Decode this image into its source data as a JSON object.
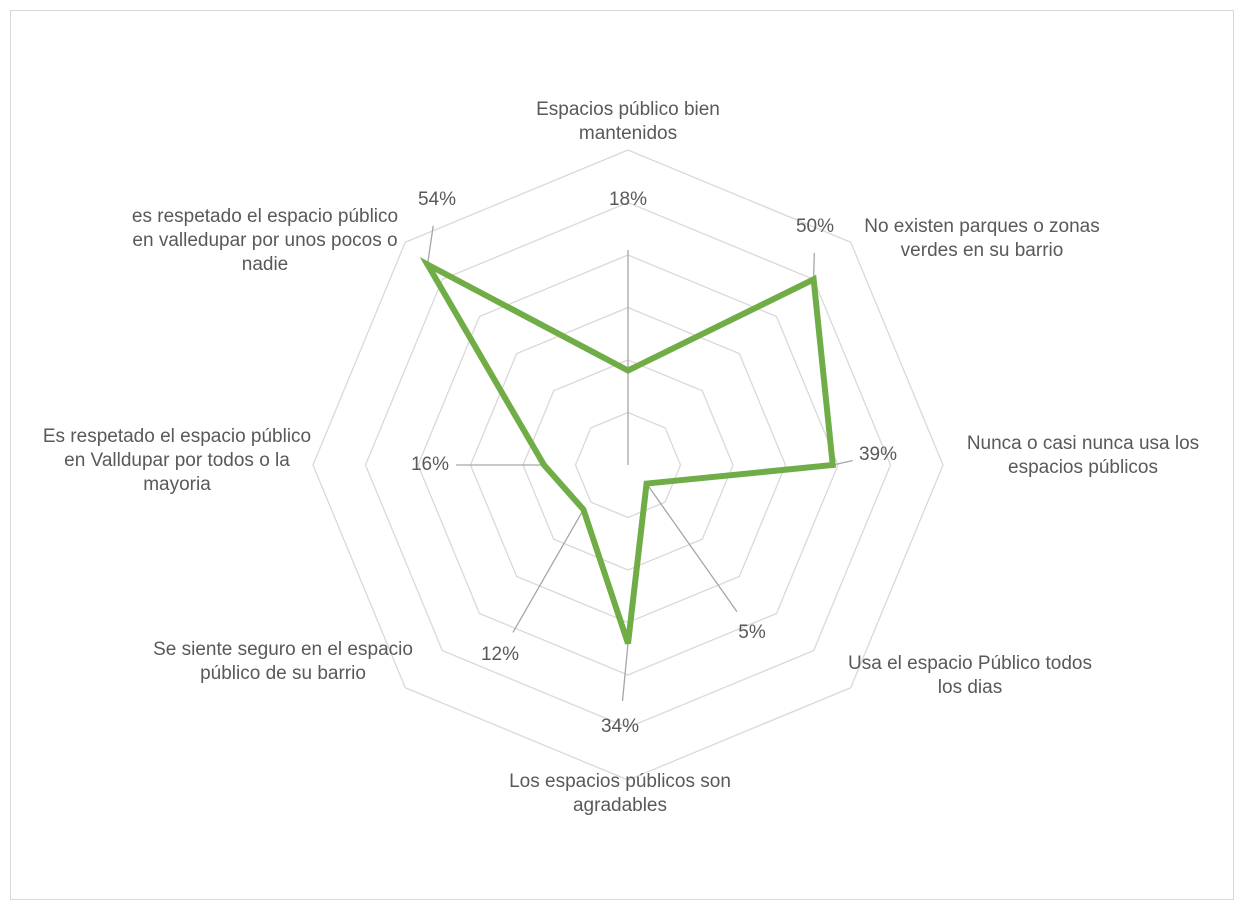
{
  "chart_data": {
    "type": "radar",
    "categories": [
      "Espacios público bien mantenidos",
      "No existen parques o zonas verdes en su barrio",
      "Nunca o casi nunca usa los espacios públicos",
      "Usa el espacio Público todos los dias",
      "Los espacios públicos son agradables",
      "Se siente seguro en el espacio público de su barrio",
      "Es respetado el espacio público en Valldupar por todos o la mayoria",
      "es respetado el espacio público en valledupar por unos pocos o nadie"
    ],
    "values": [
      18,
      50,
      39,
      5,
      34,
      12,
      16,
      54
    ],
    "value_labels": [
      "18%",
      "50%",
      "39%",
      "5%",
      "34%",
      "12%",
      "16%",
      "54%"
    ],
    "color": "#70ad47",
    "ylim": [
      0,
      60
    ],
    "yticks": [
      0,
      10,
      20,
      30,
      40,
      50,
      60
    ],
    "grid": true
  }
}
